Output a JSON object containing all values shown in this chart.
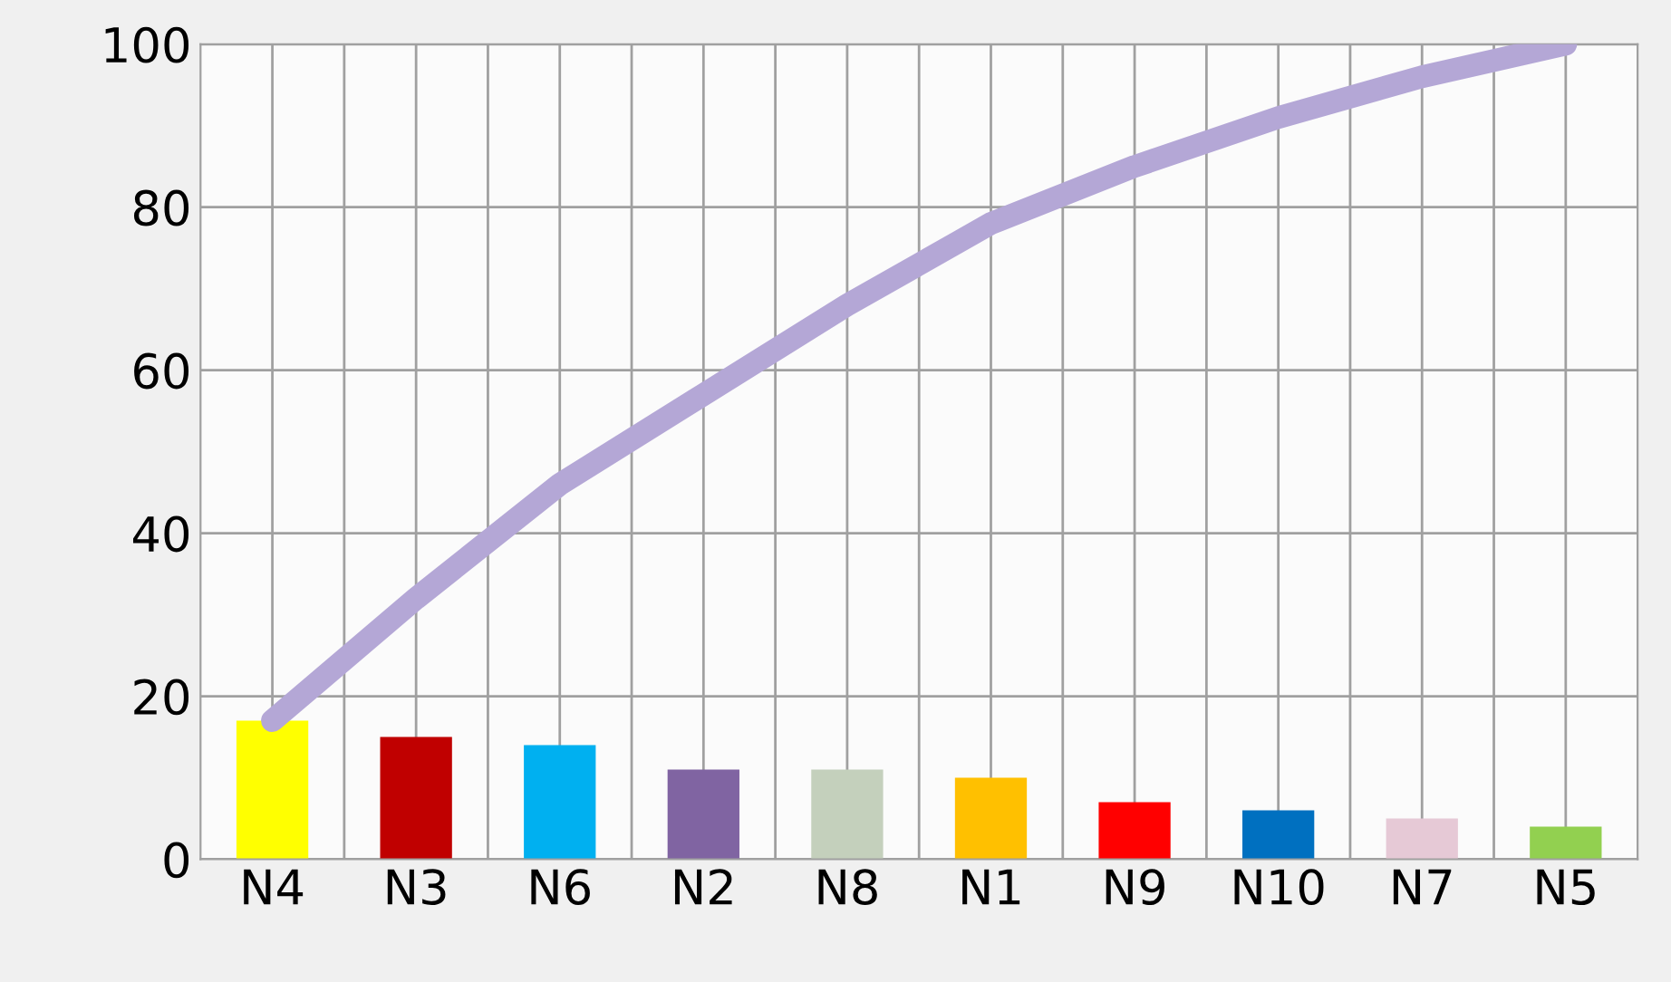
{
  "chart_data": {
    "type": "bar",
    "categories": [
      "N4",
      "N3",
      "N6",
      "N2",
      "N8",
      "N1",
      "N9",
      "N10",
      "N7",
      "N5"
    ],
    "series": [
      {
        "values": [
          17,
          15,
          14,
          11,
          11,
          10,
          7,
          6,
          5,
          4
        ],
        "colors": [
          "#ffff00",
          "#c00000",
          "#00b0f0",
          "#8064a2",
          "#c4d0bc",
          "#ffc000",
          "#ff0000",
          "#0070c0",
          "#e6c9d6",
          "#92d050"
        ]
      },
      {
        "type": "line",
        "color": "#b4a7d6",
        "values": [
          17,
          32,
          46,
          57,
          68,
          78,
          85,
          91,
          96,
          100
        ]
      }
    ],
    "ylim": [
      0,
      100
    ],
    "yticks": [
      0,
      20,
      40,
      60,
      80,
      100
    ],
    "grid": true
  }
}
